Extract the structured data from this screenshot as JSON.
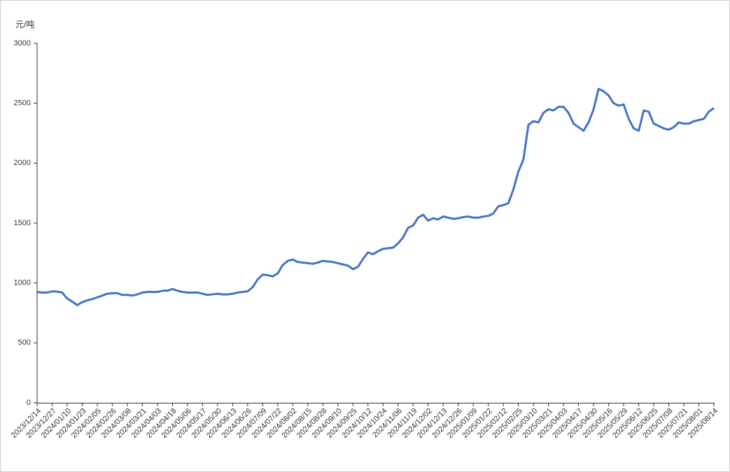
{
  "chart_data": {
    "type": "line",
    "y_label": "元/吨",
    "color": "#4472c4",
    "line_width": 3,
    "categories": [
      "2023/12/14",
      null,
      null,
      "2023/12/27",
      null,
      null,
      "2024/01/10",
      null,
      null,
      "2024/01/23",
      null,
      null,
      "2024/02/05",
      null,
      null,
      "2024/02/26",
      null,
      null,
      "2024/03/08",
      null,
      null,
      "2024/03/21",
      null,
      null,
      "2024/04/03",
      null,
      null,
      "2024/04/18",
      null,
      null,
      "2024/05/06",
      null,
      null,
      "2024/05/17",
      null,
      null,
      "2024/05/30",
      null,
      null,
      "2024/06/13",
      null,
      null,
      "2024/06/26",
      null,
      null,
      "2024/07/09",
      null,
      null,
      "2024/07/22",
      null,
      null,
      "2024/08/02",
      null,
      null,
      "2024/08/15",
      null,
      null,
      "2024/08/28",
      null,
      null,
      "2024/09/10",
      null,
      null,
      "2024/09/25",
      null,
      null,
      "2024/10/12",
      null,
      null,
      "2024/10/24",
      null,
      null,
      "2024/11/06",
      null,
      null,
      "2024/11/19",
      null,
      null,
      "2024/12/02",
      null,
      null,
      "2024/12/13",
      null,
      null,
      "2024/12/26",
      null,
      null,
      "2025/01/09",
      null,
      null,
      "2025/01/22",
      null,
      null,
      "2025/02/12",
      null,
      null,
      "2025/02/25",
      null,
      null,
      "2025/03/10",
      null,
      null,
      "2025/03/21",
      null,
      null,
      "2025/04/03",
      null,
      null,
      "2025/04/17",
      null,
      null,
      "2025/04/30",
      null,
      null,
      "2025/05/16",
      null,
      null,
      "2025/05/29",
      null,
      null,
      "2025/06/12",
      null,
      null,
      "2025/06/25",
      null,
      null,
      "2025/07/08",
      null,
      null,
      "2025/07/21",
      null,
      null,
      "2025/08/01",
      null,
      null,
      "2025/08/14"
    ],
    "values": [
      925,
      920,
      920,
      930,
      928,
      920,
      870,
      845,
      815,
      840,
      855,
      865,
      880,
      895,
      910,
      915,
      915,
      900,
      900,
      895,
      905,
      920,
      925,
      925,
      925,
      935,
      935,
      950,
      935,
      925,
      920,
      920,
      920,
      910,
      900,
      905,
      910,
      905,
      905,
      910,
      920,
      925,
      930,
      965,
      1030,
      1070,
      1065,
      1055,
      1080,
      1150,
      1185,
      1195,
      1175,
      1170,
      1165,
      1160,
      1170,
      1185,
      1180,
      1175,
      1165,
      1155,
      1145,
      1115,
      1135,
      1200,
      1255,
      1240,
      1265,
      1285,
      1290,
      1295,
      1330,
      1380,
      1460,
      1480,
      1545,
      1570,
      1520,
      1540,
      1530,
      1555,
      1545,
      1535,
      1540,
      1550,
      1555,
      1545,
      1545,
      1555,
      1560,
      1580,
      1640,
      1650,
      1665,
      1780,
      1930,
      2030,
      2320,
      2350,
      2340,
      2420,
      2450,
      2440,
      2470,
      2470,
      2420,
      2330,
      2300,
      2270,
      2340,
      2450,
      2620,
      2600,
      2565,
      2500,
      2480,
      2490,
      2370,
      2290,
      2270,
      2440,
      2430,
      2330,
      2310,
      2290,
      2280,
      2300,
      2340,
      2330,
      2330,
      2350,
      2360,
      2370,
      2430,
      2460
    ],
    "ylim": [
      0,
      3000
    ],
    "yticks": [
      0,
      500,
      1000,
      1500,
      2000,
      2500,
      3000
    ]
  }
}
